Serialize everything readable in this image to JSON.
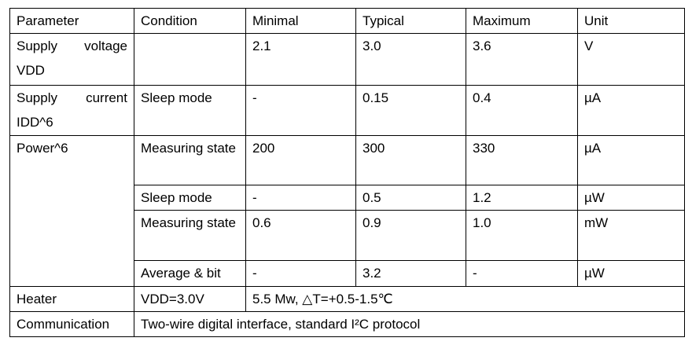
{
  "table": {
    "header": [
      "Parameter",
      "Condition",
      "Minimal",
      "Typical",
      "Maximum",
      "Unit"
    ],
    "rows": [
      {
        "parameter": "Supply voltage VDD",
        "minimal": "2.1",
        "typical": "3.0",
        "maximum": "3.6",
        "unit": "V"
      },
      {
        "parameter": "Supply current IDD^6",
        "condition": "Sleep mode",
        "minimal": "-",
        "typical": "0.15",
        "maximum": "0.4",
        "unit": "µA"
      },
      {
        "parameter": "Power^6",
        "condition": "Measuring state",
        "minimal": "200",
        "typical": "300",
        "maximum": "330",
        "unit": "µA"
      },
      {
        "condition": "Sleep mode",
        "minimal": "-",
        "typical": "0.5",
        "maximum": "1.2",
        "unit": "µW"
      },
      {
        "condition": "Measuring state",
        "minimal": "0.6",
        "typical": "0.9",
        "maximum": "1.0",
        "unit": "mW"
      },
      {
        "condition": "Average & bit",
        "minimal": "-",
        "typical": "3.2",
        "maximum": "-",
        "unit": "µW"
      },
      {
        "parameter": "Heater",
        "condition": "VDD=3.0V",
        "value": "5.5 Mw, △T=+0.5-1.5℃"
      },
      {
        "parameter": "Communication",
        "value": "Two-wire digital interface, standard I²C protocol"
      }
    ]
  }
}
